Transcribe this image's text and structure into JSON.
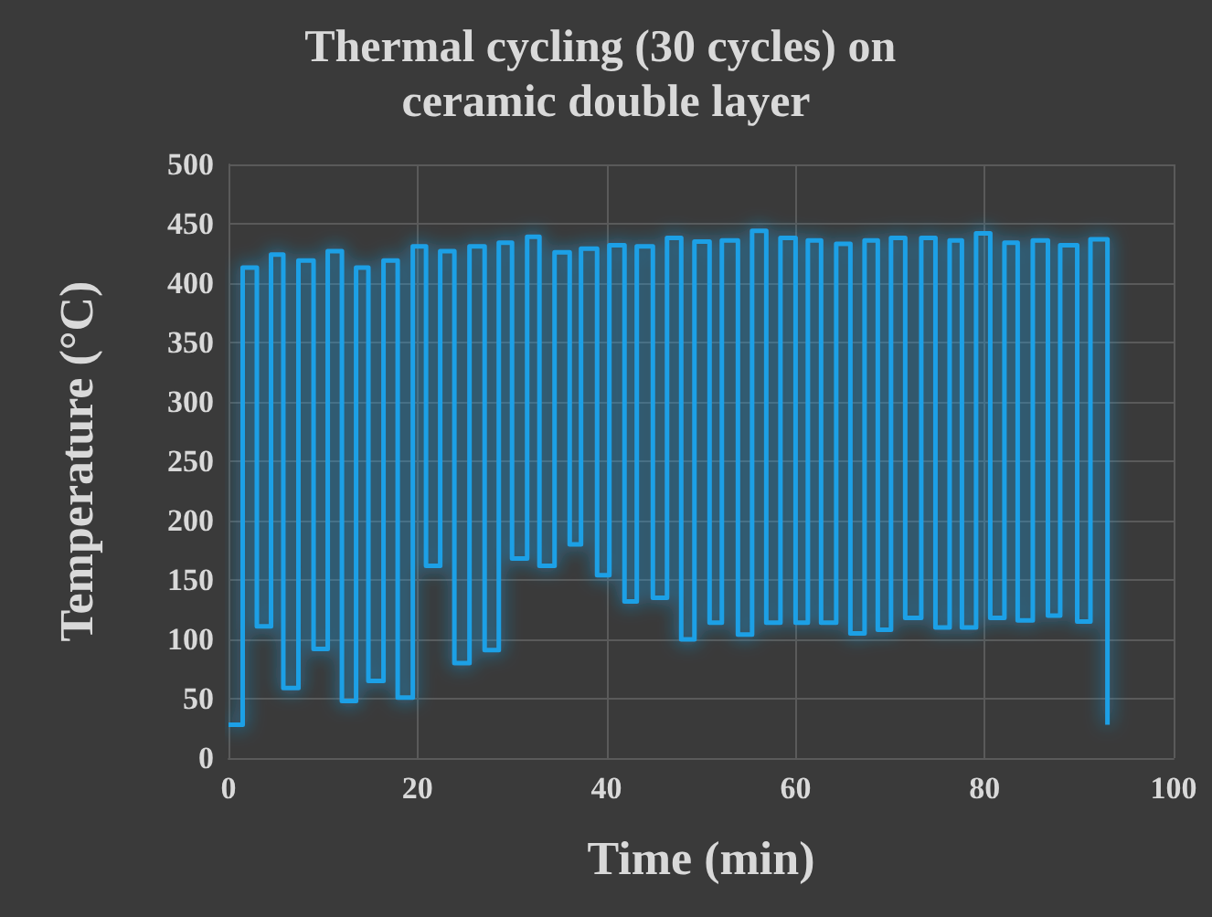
{
  "chart_data": {
    "type": "step",
    "title": "Thermal cycling (30 cycles) on ceramic double layer",
    "xlabel": "Time (min)",
    "ylabel": "Temperature (°C)",
    "xlim": [
      0,
      100
    ],
    "xticks": [
      0,
      20,
      40,
      60,
      80,
      100
    ],
    "ylim": [
      0,
      500
    ],
    "yticks": [
      0,
      50,
      100,
      150,
      200,
      250,
      300,
      350,
      400,
      450,
      500
    ],
    "grid": true,
    "marker": "none",
    "line_style": "solid",
    "series": [
      {
        "color": "#1ea0e6",
        "x": [
          0,
          1.5,
          3.0,
          4.5,
          5.8,
          7.4,
          9.0,
          10.5,
          12.0,
          13.5,
          14.8,
          16.4,
          17.9,
          19.5,
          20.9,
          22.4,
          23.9,
          25.5,
          27.1,
          28.6,
          30.0,
          31.6,
          32.9,
          34.5,
          36.1,
          37.3,
          39.0,
          40.3,
          41.9,
          43.2,
          44.9,
          46.4,
          47.9,
          49.3,
          50.9,
          52.2,
          53.9,
          55.4,
          56.9,
          58.4,
          60.0,
          61.3,
          62.7,
          64.3,
          65.8,
          67.3,
          68.7,
          70.1,
          71.6,
          73.3,
          74.8,
          76.3,
          77.6,
          79.1,
          80.6,
          82.1,
          83.5,
          85.1,
          86.7,
          88.0,
          89.8,
          91.2,
          93.0
        ],
        "values": [
          28,
          413,
          111,
          424,
          59,
          419,
          92,
          427,
          48,
          413,
          65,
          419,
          51,
          431,
          162,
          427,
          80,
          431,
          91,
          434,
          168,
          439,
          162,
          426,
          180,
          429,
          154,
          432,
          132,
          431,
          135,
          438,
          100,
          435,
          114,
          436,
          104,
          444,
          114,
          438,
          114,
          436,
          114,
          433,
          105,
          436,
          108,
          438,
          118,
          438,
          110,
          436,
          110,
          442,
          118,
          434,
          116,
          436,
          120,
          432,
          115,
          437,
          28
        ]
      }
    ]
  }
}
